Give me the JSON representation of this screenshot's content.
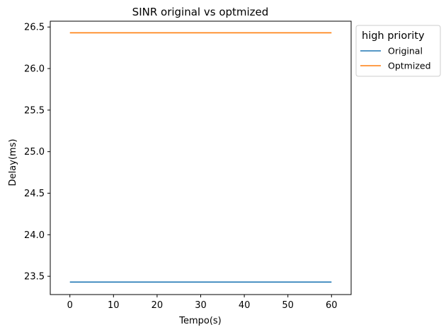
{
  "chart_data": {
    "type": "line",
    "title": "SINR original vs optmized",
    "xlabel": "Tempo(s)",
    "ylabel": "Delay(ms)",
    "xlim": [
      -4.5,
      64.5
    ],
    "ylim": [
      23.28,
      26.57
    ],
    "xticks": [
      0,
      10,
      20,
      30,
      40,
      50,
      60
    ],
    "yticks": [
      23.5,
      24.0,
      24.5,
      25.0,
      25.5,
      26.0,
      26.5
    ],
    "xtick_labels": [
      "0",
      "10",
      "20",
      "30",
      "40",
      "50",
      "60"
    ],
    "ytick_labels": [
      "23.5",
      "24.0",
      "24.5",
      "25.0",
      "25.5",
      "26.0",
      "26.5"
    ],
    "legend": {
      "title": "high priority",
      "placement": "outside-upper-right"
    },
    "grid": false,
    "series": [
      {
        "name": "Original",
        "color": "#1f77b4",
        "x": [
          0,
          60
        ],
        "y": [
          23.43,
          23.43
        ]
      },
      {
        "name": "Optmized",
        "color": "#ff7f0e",
        "x": [
          0,
          60
        ],
        "y": [
          26.43,
          26.43
        ]
      }
    ]
  }
}
